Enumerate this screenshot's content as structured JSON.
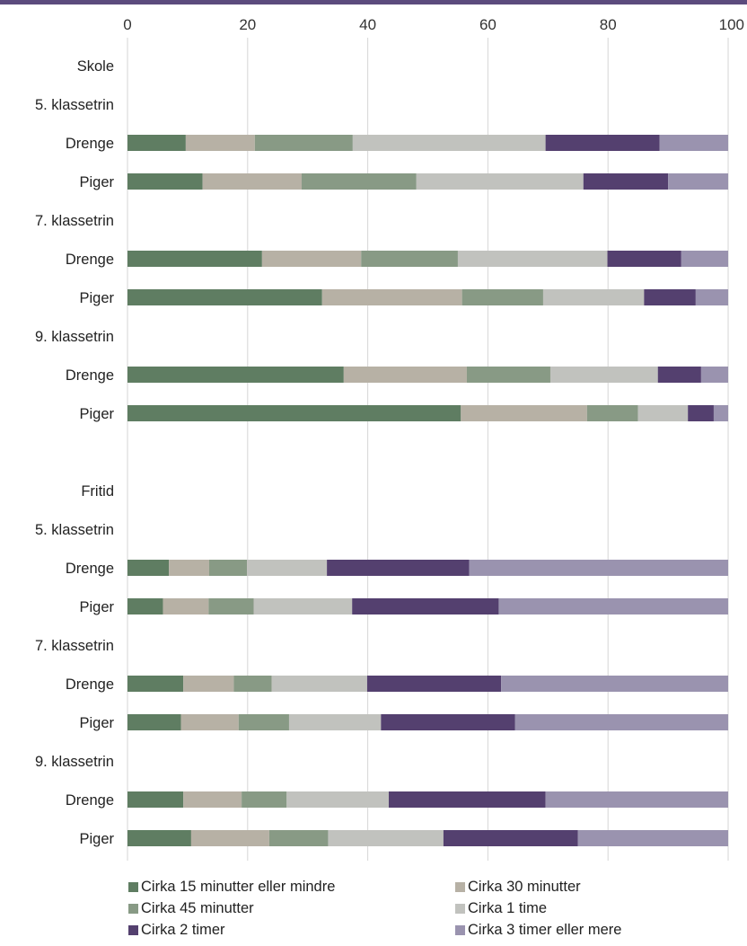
{
  "chart_data": {
    "type": "bar",
    "orientation": "horizontal",
    "stacked": true,
    "xlim": [
      0,
      100
    ],
    "x_ticks": [
      0,
      20,
      40,
      60,
      80,
      100
    ],
    "grid": true,
    "legend_position": "bottom",
    "colors": [
      "#5f7d62",
      "#b7b1a5",
      "#889a85",
      "#c1c2be",
      "#54406f",
      "#9a93af"
    ],
    "series_names": [
      "Cirka 15 minutter eller mindre",
      "Cirka 30 minutter",
      "Cirka 45 minutter",
      "Cirka 1 time",
      "Cirka 2 timer",
      "Cirka 3 timer eller mere"
    ],
    "rows": [
      {
        "label": "Skole",
        "values": null
      },
      {
        "label": "5. klassetrin",
        "values": null
      },
      {
        "label": "Drenge",
        "values": [
          9.7,
          11.5,
          16.3,
          32.1,
          19.0,
          11.4
        ]
      },
      {
        "label": "Piger",
        "values": [
          12.5,
          16.5,
          19.1,
          27.8,
          14.1,
          10.0
        ]
      },
      {
        "label": "7. klassetrin",
        "values": null
      },
      {
        "label": "Drenge",
        "values": [
          22.4,
          16.5,
          16.1,
          24.9,
          12.3,
          7.8
        ]
      },
      {
        "label": "Piger",
        "values": [
          32.4,
          23.3,
          13.5,
          16.8,
          8.6,
          5.4
        ]
      },
      {
        "label": "9. klassetrin",
        "values": null
      },
      {
        "label": "Drenge",
        "values": [
          36.0,
          20.5,
          13.9,
          17.9,
          7.2,
          4.5
        ]
      },
      {
        "label": "Piger",
        "values": [
          55.5,
          21.0,
          8.5,
          8.3,
          4.3,
          2.4
        ]
      },
      {
        "label": "",
        "values": null
      },
      {
        "label": "Fritid",
        "values": null
      },
      {
        "label": "5. klassetrin",
        "values": null
      },
      {
        "label": "Drenge",
        "values": [
          6.9,
          6.7,
          6.3,
          13.3,
          23.7,
          43.1
        ]
      },
      {
        "label": "Piger",
        "values": [
          5.9,
          7.6,
          7.5,
          16.4,
          24.4,
          38.2
        ]
      },
      {
        "label": "7. klassetrin",
        "values": null
      },
      {
        "label": "Drenge",
        "values": [
          9.3,
          8.4,
          6.3,
          15.9,
          22.3,
          37.8
        ]
      },
      {
        "label": "Piger",
        "values": [
          8.9,
          9.6,
          8.4,
          15.3,
          22.3,
          35.5
        ]
      },
      {
        "label": "9. klassetrin",
        "values": null
      },
      {
        "label": "Drenge",
        "values": [
          9.3,
          9.7,
          7.5,
          17.0,
          26.1,
          30.4
        ]
      },
      {
        "label": "Piger",
        "values": [
          10.6,
          13.0,
          9.8,
          19.2,
          22.4,
          25.0
        ]
      }
    ]
  }
}
